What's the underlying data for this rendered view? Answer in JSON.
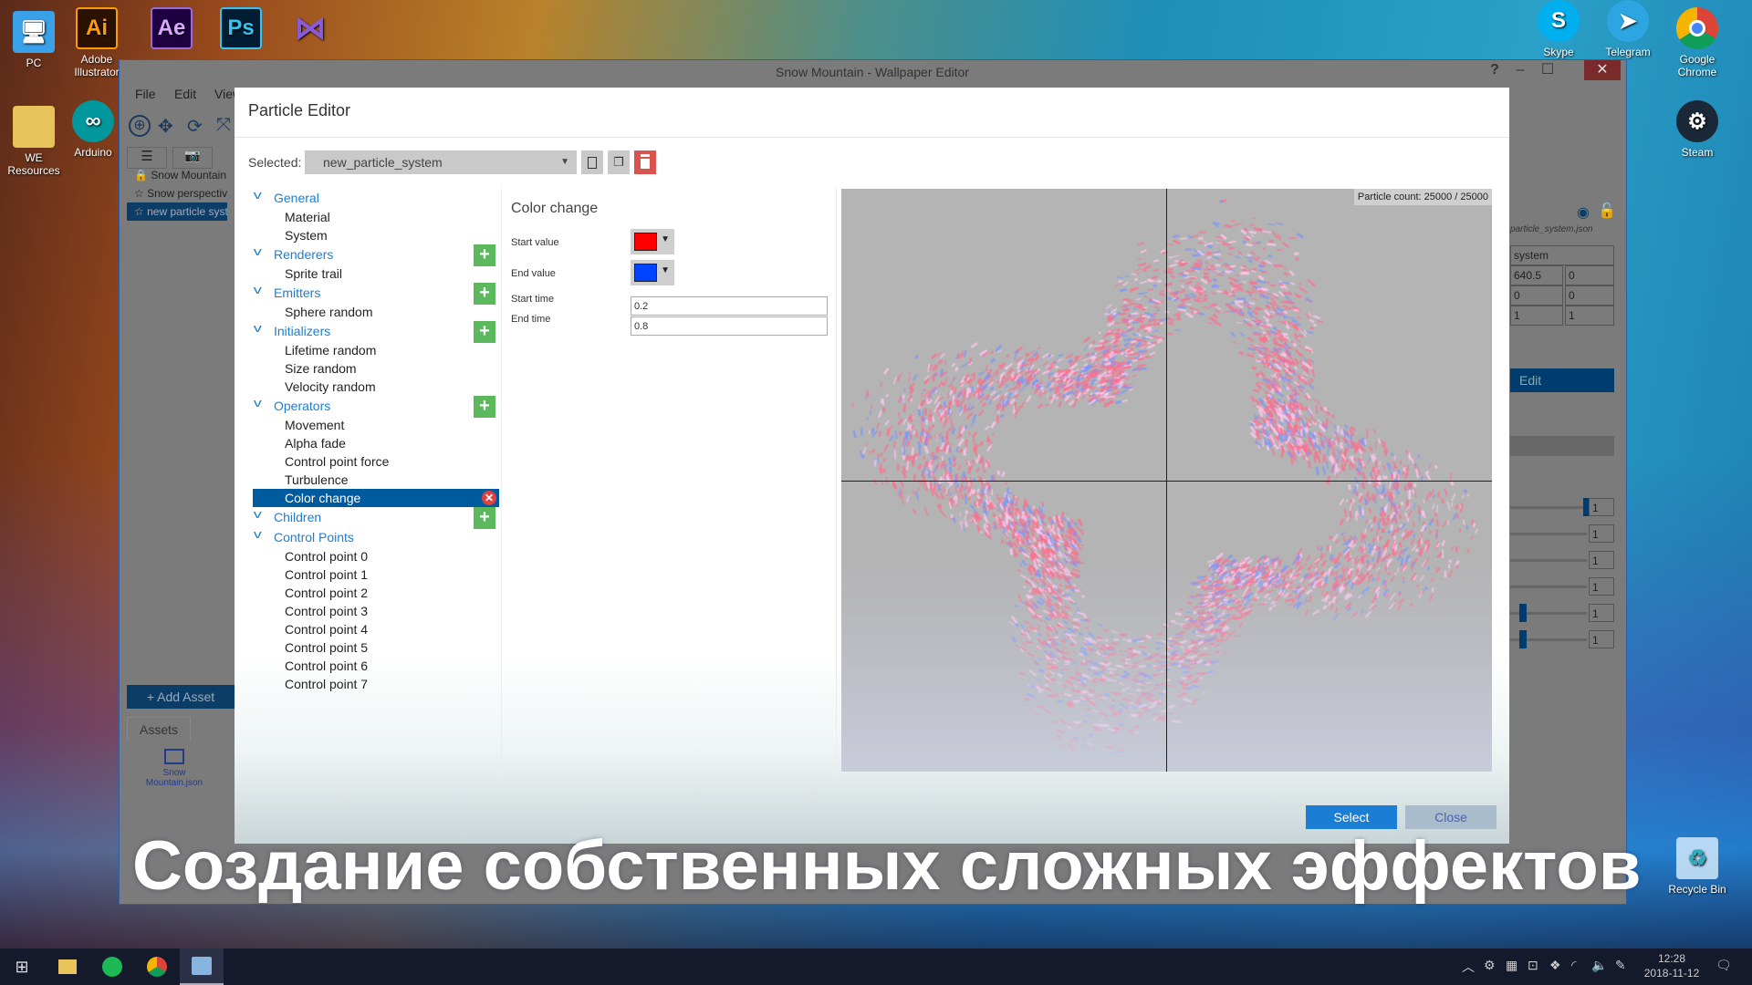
{
  "desktop": {
    "icons_left": [
      {
        "label": "PC",
        "icon": "computer-icon"
      },
      {
        "label": "Adobe Illustrator",
        "icon": "Ai"
      },
      {
        "label": "WE Resources",
        "icon": "folder-icon"
      },
      {
        "label": "Arduino",
        "icon": "arduino-icon"
      },
      {
        "label": "",
        "icon": "Ae"
      },
      {
        "label": "",
        "icon": "Ps"
      },
      {
        "label": "",
        "icon": "visual-studio-icon"
      }
    ],
    "icons_right": [
      {
        "label": "Skype",
        "icon": "S"
      },
      {
        "label": "Telegram",
        "icon": "telegram-icon"
      },
      {
        "label": "Google Chrome",
        "icon": "chrome-icon"
      },
      {
        "label": "Steam",
        "icon": "steam-icon"
      },
      {
        "label": "Recycle Bin",
        "icon": "recycle-bin-icon"
      }
    ]
  },
  "window": {
    "title": "Snow Mountain - Wallpaper Editor",
    "menu": [
      "File",
      "Edit",
      "View"
    ],
    "help": "?",
    "minimize": "–",
    "maximize": "☐",
    "close": "✕",
    "scene_tree": [
      "Snow Mountain",
      "Snow perspective",
      "new particle system"
    ],
    "add_asset": "+ Add Asset",
    "assets_tab": "Assets",
    "asset_item": "Snow Mountain.json",
    "right_panel": {
      "file": "particle_system.json",
      "name": "system",
      "rows": [
        [
          "640.5",
          "0"
        ],
        [
          "0",
          "0"
        ],
        [
          "1",
          "1"
        ]
      ],
      "edit": "Edit",
      "slider_values": [
        "1",
        "1",
        "1",
        "1",
        "1",
        "1"
      ]
    }
  },
  "dialog": {
    "title": "Particle Editor",
    "selected_label": "Selected:",
    "selected_value": "new_particle_system",
    "tree": [
      {
        "label": "General",
        "add": false,
        "items": [
          "Material",
          "System"
        ]
      },
      {
        "label": "Renderers",
        "add": true,
        "items": [
          "Sprite trail"
        ]
      },
      {
        "label": "Emitters",
        "add": true,
        "items": [
          "Sphere random"
        ]
      },
      {
        "label": "Initializers",
        "add": true,
        "items": [
          "Lifetime random",
          "Size random",
          "Velocity random"
        ]
      },
      {
        "label": "Operators",
        "add": true,
        "items": [
          "Movement",
          "Alpha fade",
          "Control point force",
          "Turbulence",
          "Color change"
        ]
      },
      {
        "label": "Children",
        "add": true,
        "items": []
      },
      {
        "label": "Control Points",
        "add": false,
        "items": [
          "Control point 0",
          "Control point 1",
          "Control point 2",
          "Control point 3",
          "Control point 4",
          "Control point 5",
          "Control point 6",
          "Control point 7"
        ]
      }
    ],
    "selected_item": "Color change",
    "properties": {
      "heading": "Color change",
      "start_value_label": "Start value",
      "start_value_color": "#ff0000",
      "end_value_label": "End value",
      "end_value_color": "#0044ff",
      "start_time_label": "Start time",
      "start_time": "0.2",
      "end_time_label": "End time",
      "end_time": "0.8"
    },
    "particle_count": "Particle count: 25000 / 25000",
    "select_button": "Select",
    "close_button": "Close",
    "accent": "#005a9e"
  },
  "caption": "Создание собственных сложных эффектов",
  "taskbar": {
    "time": "12:28",
    "date": "2018-11-12"
  }
}
